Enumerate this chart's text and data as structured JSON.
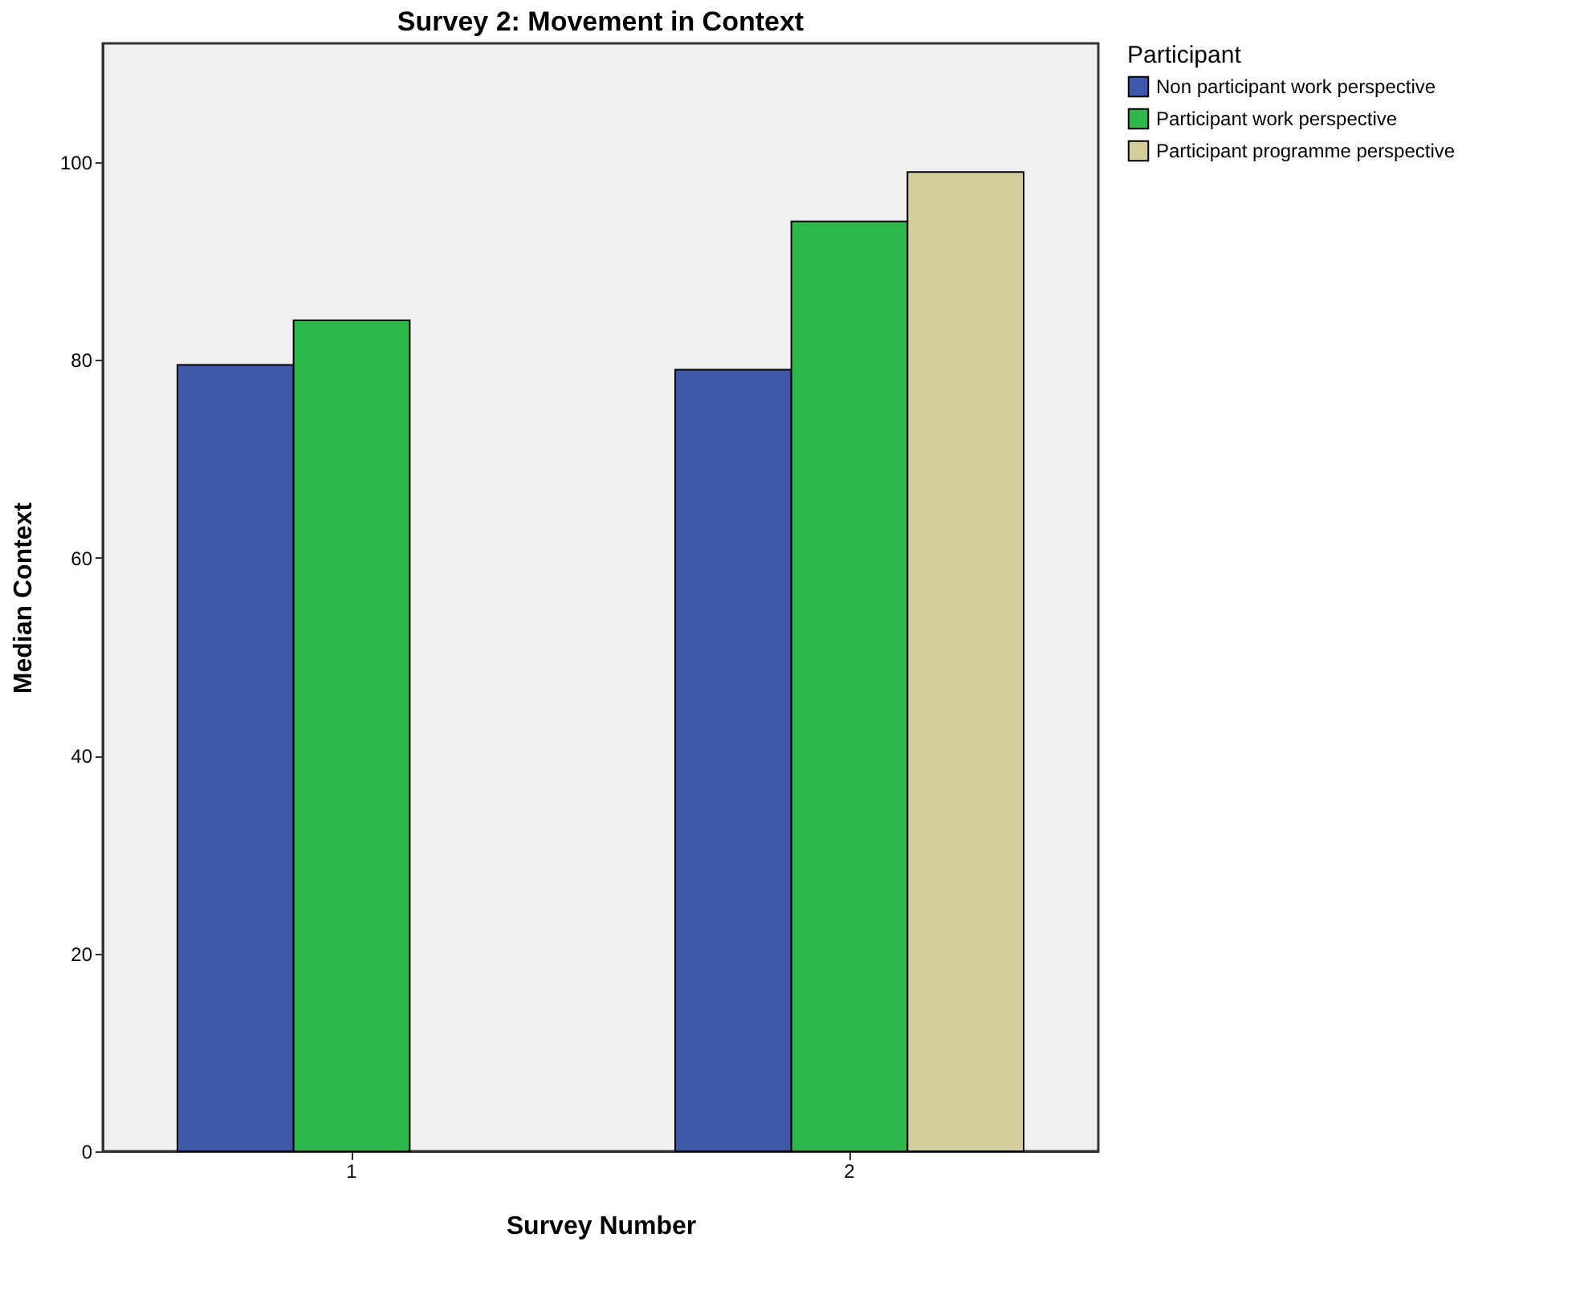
{
  "chart_data": {
    "type": "bar",
    "title": "Survey 2: Movement in Context",
    "xlabel": "Survey Number",
    "ylabel": "Median Context",
    "legend_title": "Participant",
    "legend": "top right",
    "categories": [
      "1",
      "2"
    ],
    "ylim": [
      0,
      112
    ],
    "yticks": [
      0,
      20,
      40,
      60,
      80,
      100
    ],
    "series": [
      {
        "name": "Non participant work perspective",
        "color": "#3e58ac",
        "values": [
          79.5,
          79
        ]
      },
      {
        "name": "Participant work perspective",
        "color": "#2fb84a",
        "values": [
          84,
          94
        ]
      },
      {
        "name": "Participant programme perspective",
        "color": "#d4cf98",
        "values": [
          null,
          99
        ]
      }
    ]
  }
}
